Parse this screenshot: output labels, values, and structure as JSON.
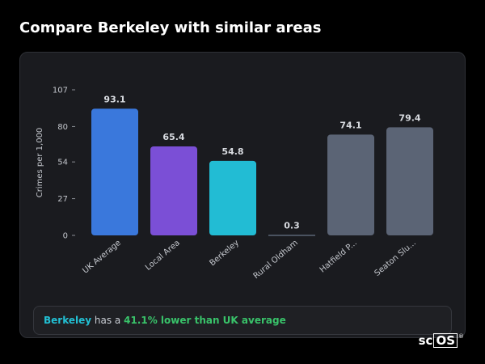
{
  "page": {
    "title": "Compare Berkeley with similar areas"
  },
  "chart_data": {
    "type": "bar",
    "ylabel": "Crimes per 1,000",
    "ylim": [
      0,
      107
    ],
    "yticks": [
      0,
      27,
      54,
      80,
      107
    ],
    "grid": false,
    "categories": [
      "UK Average",
      "Local Area",
      "Berkeley",
      "Rural Oldham",
      "Hatfield P...",
      "Seaton Slu..."
    ],
    "values": [
      93.1,
      65.4,
      54.8,
      0.3,
      74.1,
      79.4
    ],
    "value_labels": [
      "93.1",
      "65.4",
      "54.8",
      "0.3",
      "74.1",
      "79.4"
    ],
    "colors": [
      "#3a78dc",
      "#7b4fd6",
      "#22bcd4",
      "#5b6475",
      "#5b6475",
      "#5b6475"
    ]
  },
  "callout": {
    "area": "Berkeley",
    "middle": " has a ",
    "difference": "41.1% lower than UK average"
  },
  "logo": {
    "text_prefix": "sc",
    "text_box": "OS",
    "mark": "®"
  }
}
